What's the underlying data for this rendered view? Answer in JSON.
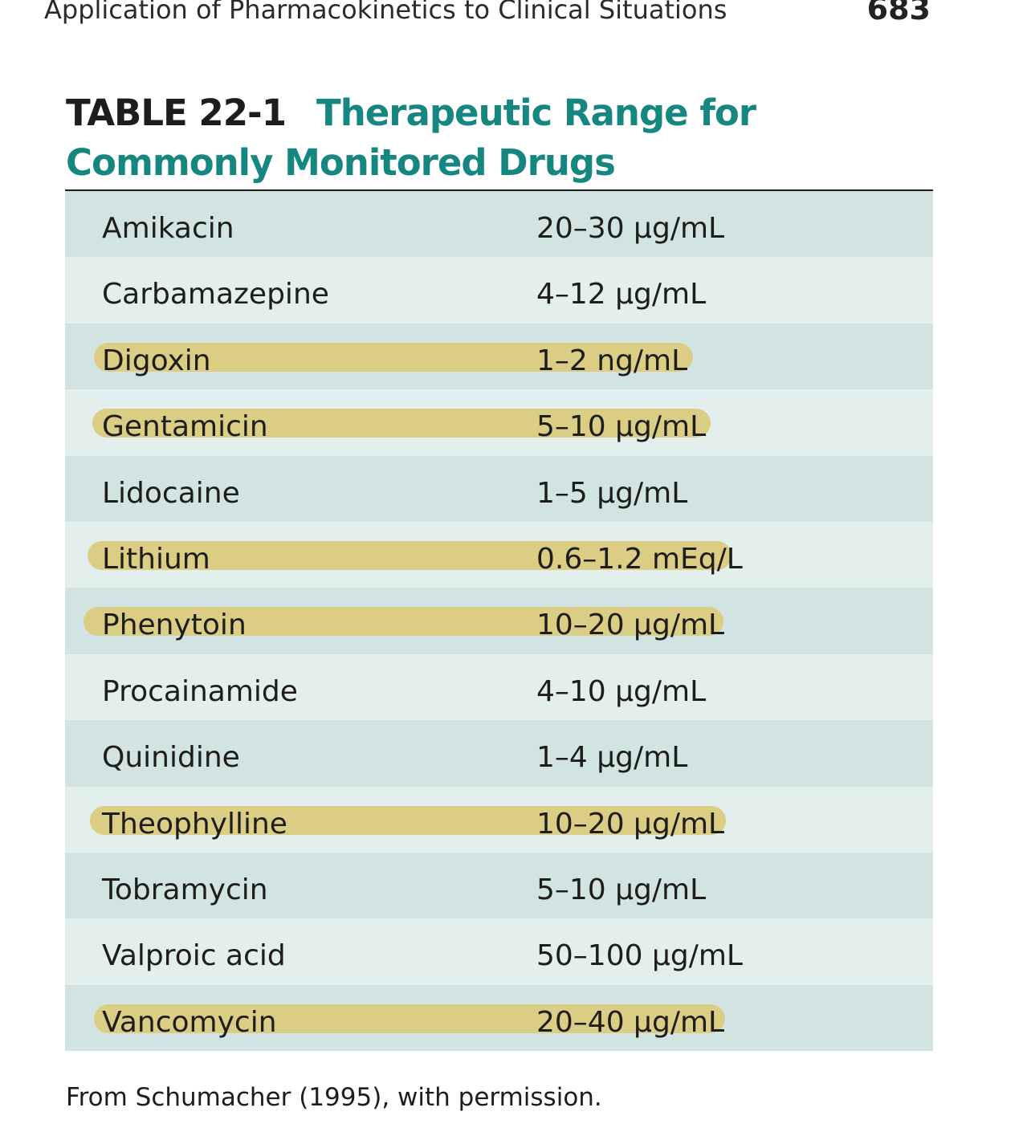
{
  "running_head": {
    "title": "Application of Pharmacokinetics to Clinical Situations",
    "page_number": "683"
  },
  "table": {
    "label": "TABLE 22-1",
    "caption": "Therapeutic Range for Commonly Monitored Drugs",
    "colors": {
      "caption": "#168680",
      "row_dark": "#d2e4e2",
      "row_light": "#e2efed",
      "highlight": "#dccd84"
    },
    "rows": [
      {
        "drug": "Amikacin",
        "range": "20–30 μg/mL",
        "highlighted": false
      },
      {
        "drug": "Carbamazepine",
        "range": "4–12 μg/mL",
        "highlighted": false
      },
      {
        "drug": "Digoxin",
        "range": "1–2 ng/mL",
        "highlighted": true
      },
      {
        "drug": "Gentamicin",
        "range": "5–10 μg/mL",
        "highlighted": true
      },
      {
        "drug": "Lidocaine",
        "range": "1–5 μg/mL",
        "highlighted": false
      },
      {
        "drug": "Lithium",
        "range": "0.6–1.2 mEq/L",
        "highlighted": true
      },
      {
        "drug": "Phenytoin",
        "range": "10–20 μg/mL",
        "highlighted": true
      },
      {
        "drug": "Procainamide",
        "range": "4–10 μg/mL",
        "highlighted": false
      },
      {
        "drug": "Quinidine",
        "range": "1–4 μg/mL",
        "highlighted": false
      },
      {
        "drug": "Theophylline",
        "range": "10–20 μg/mL",
        "highlighted": true
      },
      {
        "drug": "Tobramycin",
        "range": "5–10 μg/mL",
        "highlighted": false
      },
      {
        "drug": "Valproic acid",
        "range": "50–100 μg/mL",
        "highlighted": false
      },
      {
        "drug": "Vancomycin",
        "range": "20–40 μg/mL",
        "highlighted": true
      }
    ]
  },
  "source_note": "From Schumacher (1995), with permission."
}
